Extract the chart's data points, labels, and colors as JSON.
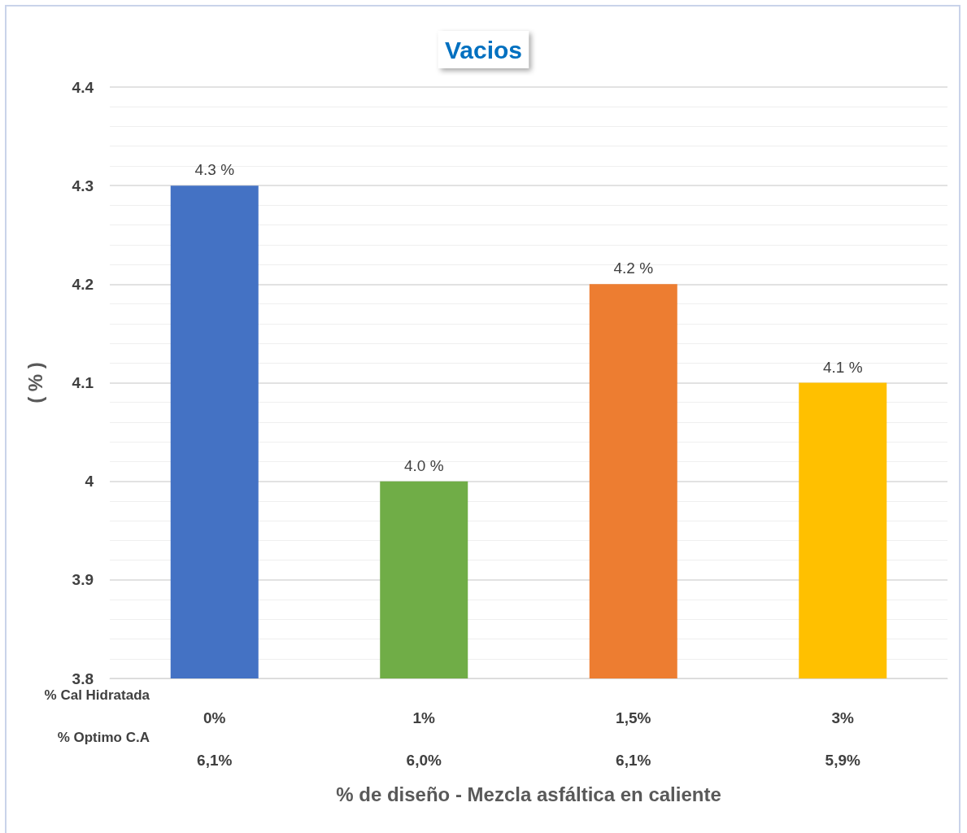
{
  "chart_data": {
    "type": "bar",
    "title": "Vacios",
    "xlabel": "% de diseño - Mezcla asfáltica en caliente",
    "ylabel": "( % )",
    "categories": [
      "0%\n6,1%",
      "1%\n6,0%",
      "1,5%\n6,1%",
      "3%\n5,9%"
    ],
    "values": [
      4.3,
      4.0,
      4.2,
      4.1
    ],
    "colors": [
      "#4472c4",
      "#70ad47",
      "#ed7d31",
      "#ffc000"
    ],
    "value_labels": [
      "4.3 %",
      "4.0 %",
      "4.2 %",
      "4.1 %"
    ],
    "annotations": [
      "% Cal Hidratada",
      "% Optimo C.A"
    ],
    "ylim": [
      3.8,
      4.4
    ],
    "yticks": [
      3.8,
      3.9,
      4,
      4.1,
      4.2,
      4.3,
      4.4
    ],
    "grid": "y"
  }
}
